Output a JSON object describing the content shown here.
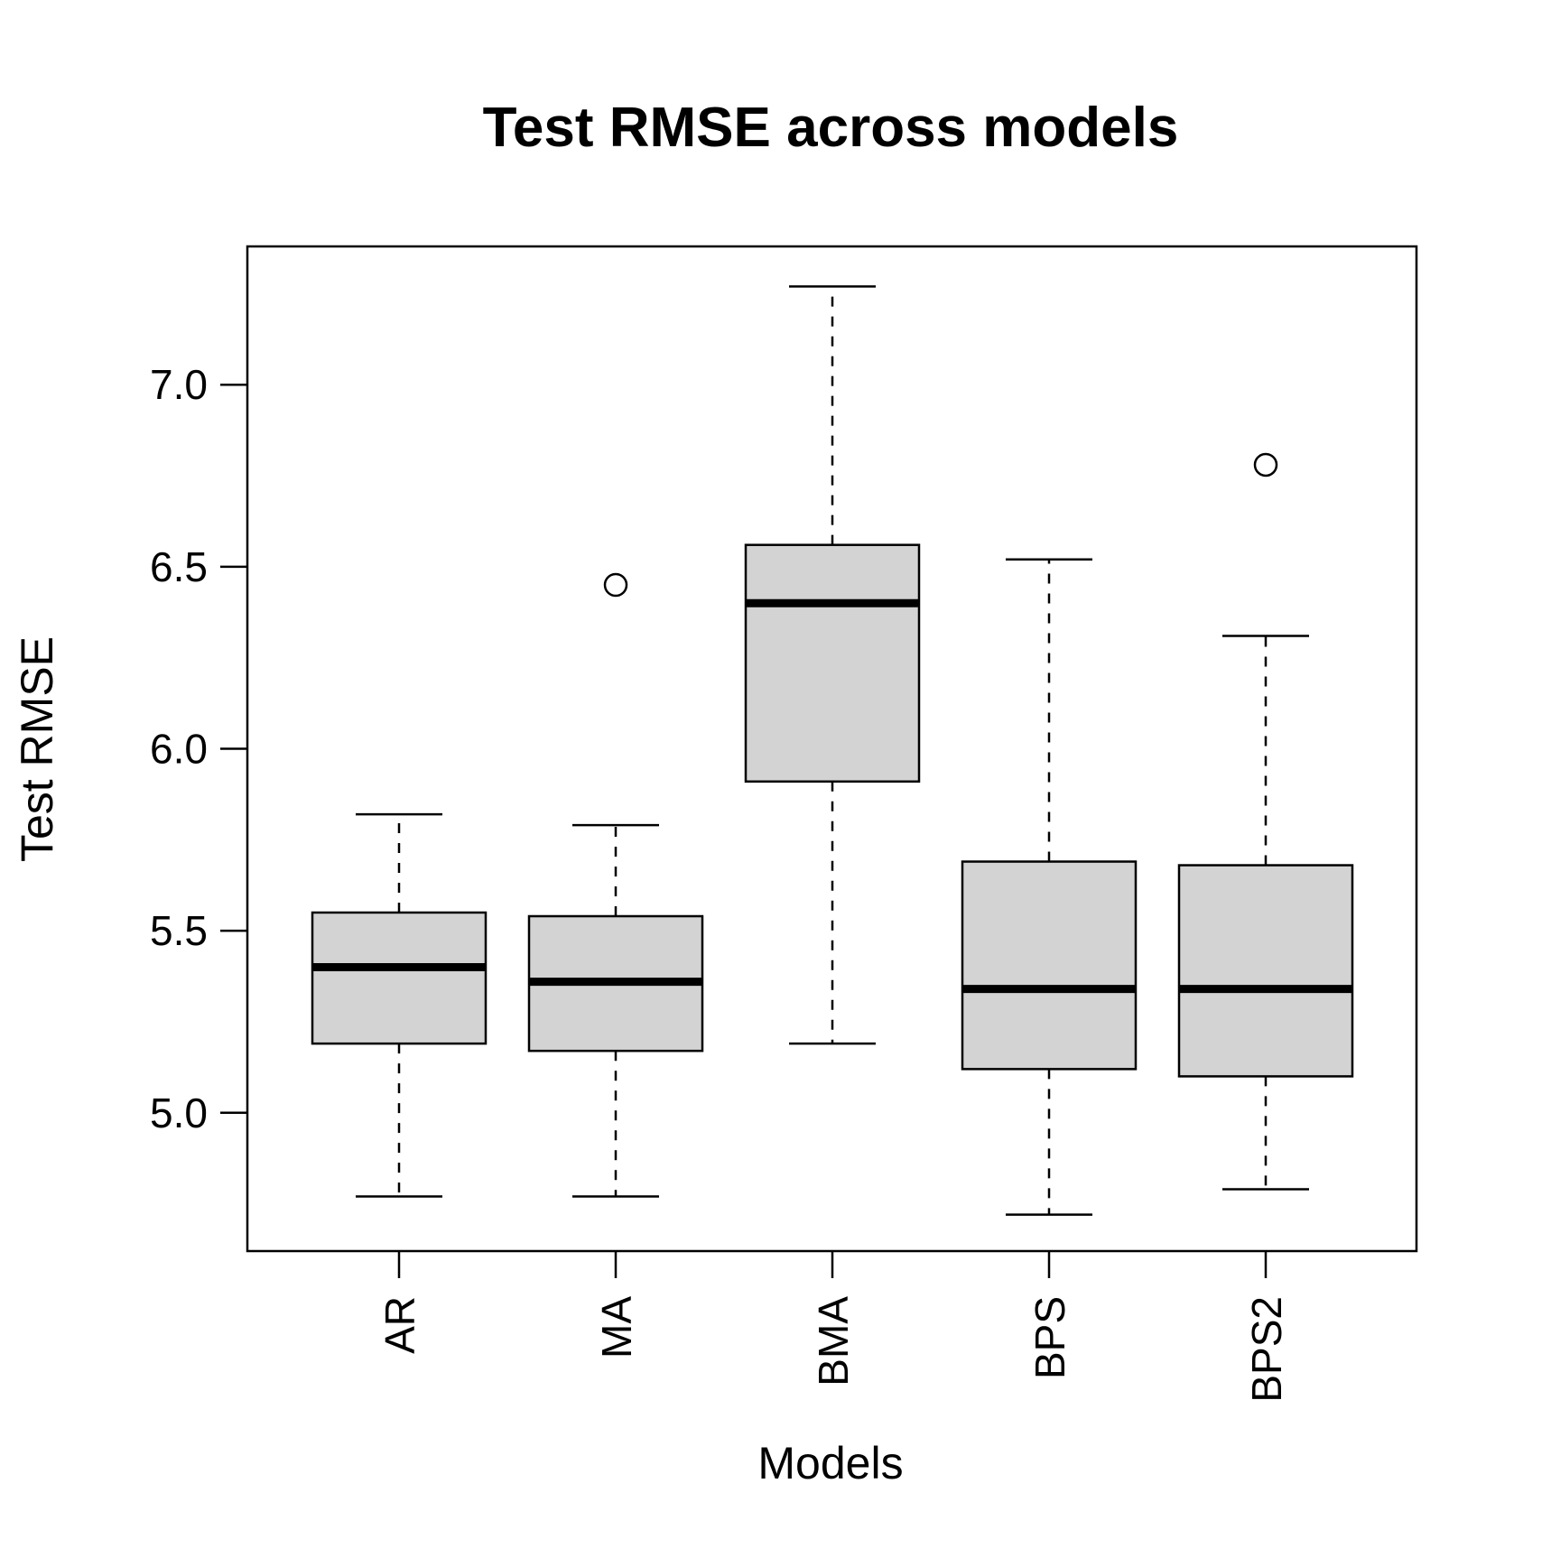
{
  "chart_data": {
    "type": "boxplot",
    "title": "Test RMSE across models",
    "xlabel": "Models",
    "ylabel": "Test RMSE",
    "ylim": [
      4.62,
      7.38
    ],
    "yticks": [
      5.0,
      5.5,
      6.0,
      6.5,
      7.0
    ],
    "ytick_labels": [
      "5.0",
      "5.5",
      "6.0",
      "6.5",
      "7.0"
    ],
    "box_fill": "#d3d3d3",
    "categories": [
      "AR",
      "MA",
      "BMA",
      "BPS",
      "BPS2"
    ],
    "boxes": [
      {
        "name": "AR",
        "whisker_low": 4.77,
        "q1": 5.19,
        "median": 5.4,
        "q3": 5.55,
        "whisker_high": 5.82,
        "outliers": []
      },
      {
        "name": "MA",
        "whisker_low": 4.77,
        "q1": 5.17,
        "median": 5.36,
        "q3": 5.54,
        "whisker_high": 5.79,
        "outliers": [
          6.45
        ]
      },
      {
        "name": "BMA",
        "whisker_low": 5.19,
        "q1": 5.91,
        "median": 6.4,
        "q3": 6.56,
        "whisker_high": 7.27,
        "outliers": []
      },
      {
        "name": "BPS",
        "whisker_low": 4.72,
        "q1": 5.12,
        "median": 5.34,
        "q3": 5.69,
        "whisker_high": 6.52,
        "outliers": []
      },
      {
        "name": "BPS2",
        "whisker_low": 4.79,
        "q1": 5.1,
        "median": 5.34,
        "q3": 5.68,
        "whisker_high": 6.31,
        "outliers": [
          6.78
        ]
      }
    ]
  }
}
